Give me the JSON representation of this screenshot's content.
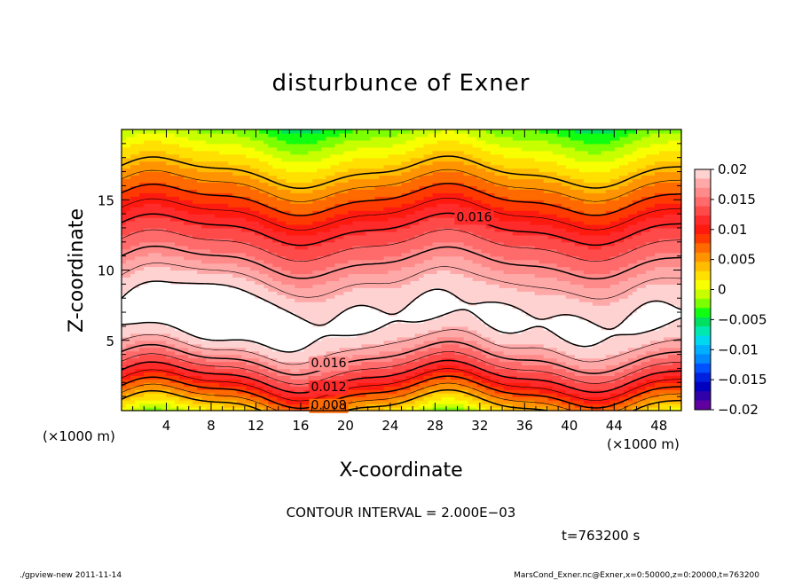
{
  "chart_data": {
    "type": "contour",
    "title": "disturbunce of Exner",
    "xlabel": "X-coordinate",
    "ylabel": "Z-coordinate",
    "x_unit_left": "(×1000 m)",
    "x_unit_right": "(×1000 m)",
    "xlim": [
      0,
      50
    ],
    "ylim": [
      0,
      20
    ],
    "x_ticks": [
      4,
      8,
      12,
      16,
      20,
      24,
      28,
      32,
      36,
      40,
      44,
      48
    ],
    "y_ticks": [
      5,
      10,
      15
    ],
    "contour_labels": [
      {
        "text": "0.016",
        "x": 31.5,
        "z": 13.8
      },
      {
        "text": "0.016",
        "x": 18.5,
        "z": 3.4
      },
      {
        "text": "0.012",
        "x": 18.5,
        "z": 1.7
      },
      {
        "text": "0.008",
        "x": 18.5,
        "z": 0.4
      }
    ],
    "colorbar": {
      "tick_labels": [
        "0.02",
        "0.015",
        "0.01",
        "0.005",
        "0",
        "−0.005",
        "−0.01",
        "−0.015",
        "−0.02"
      ],
      "tick_values": [
        0.02,
        0.015,
        0.01,
        0.005,
        0,
        -0.005,
        -0.01,
        -0.015,
        -0.02
      ],
      "range": [
        -0.02,
        0.02
      ],
      "colors_top_to_bottom": [
        "#ffd2d2",
        "#ffa8a8",
        "#ff8a8a",
        "#ff6a6a",
        "#ff4a4a",
        "#ff2a2a",
        "#ff1a10",
        "#ff3a00",
        "#ff6a00",
        "#ff9400",
        "#ffbc00",
        "#ffe000",
        "#f8ff00",
        "#c8ff00",
        "#7cff00",
        "#10ff10",
        "#00e060",
        "#00e8b0",
        "#00d8f0",
        "#00b0ff",
        "#0088ff",
        "#0050ff",
        "#0020e0",
        "#0000c0",
        "#3000a8",
        "#6000a0"
      ]
    },
    "white_threshold": 0.02,
    "contour_interval": "CONTOUR INTERVAL = 2.000E−03",
    "time_label": "t=763200 s"
  },
  "footer": {
    "left": "./gpview-new   2011-11-14",
    "right": "MarsCond_Exner.nc@Exner,x=0:50000,z=0:20000,t=763200"
  }
}
